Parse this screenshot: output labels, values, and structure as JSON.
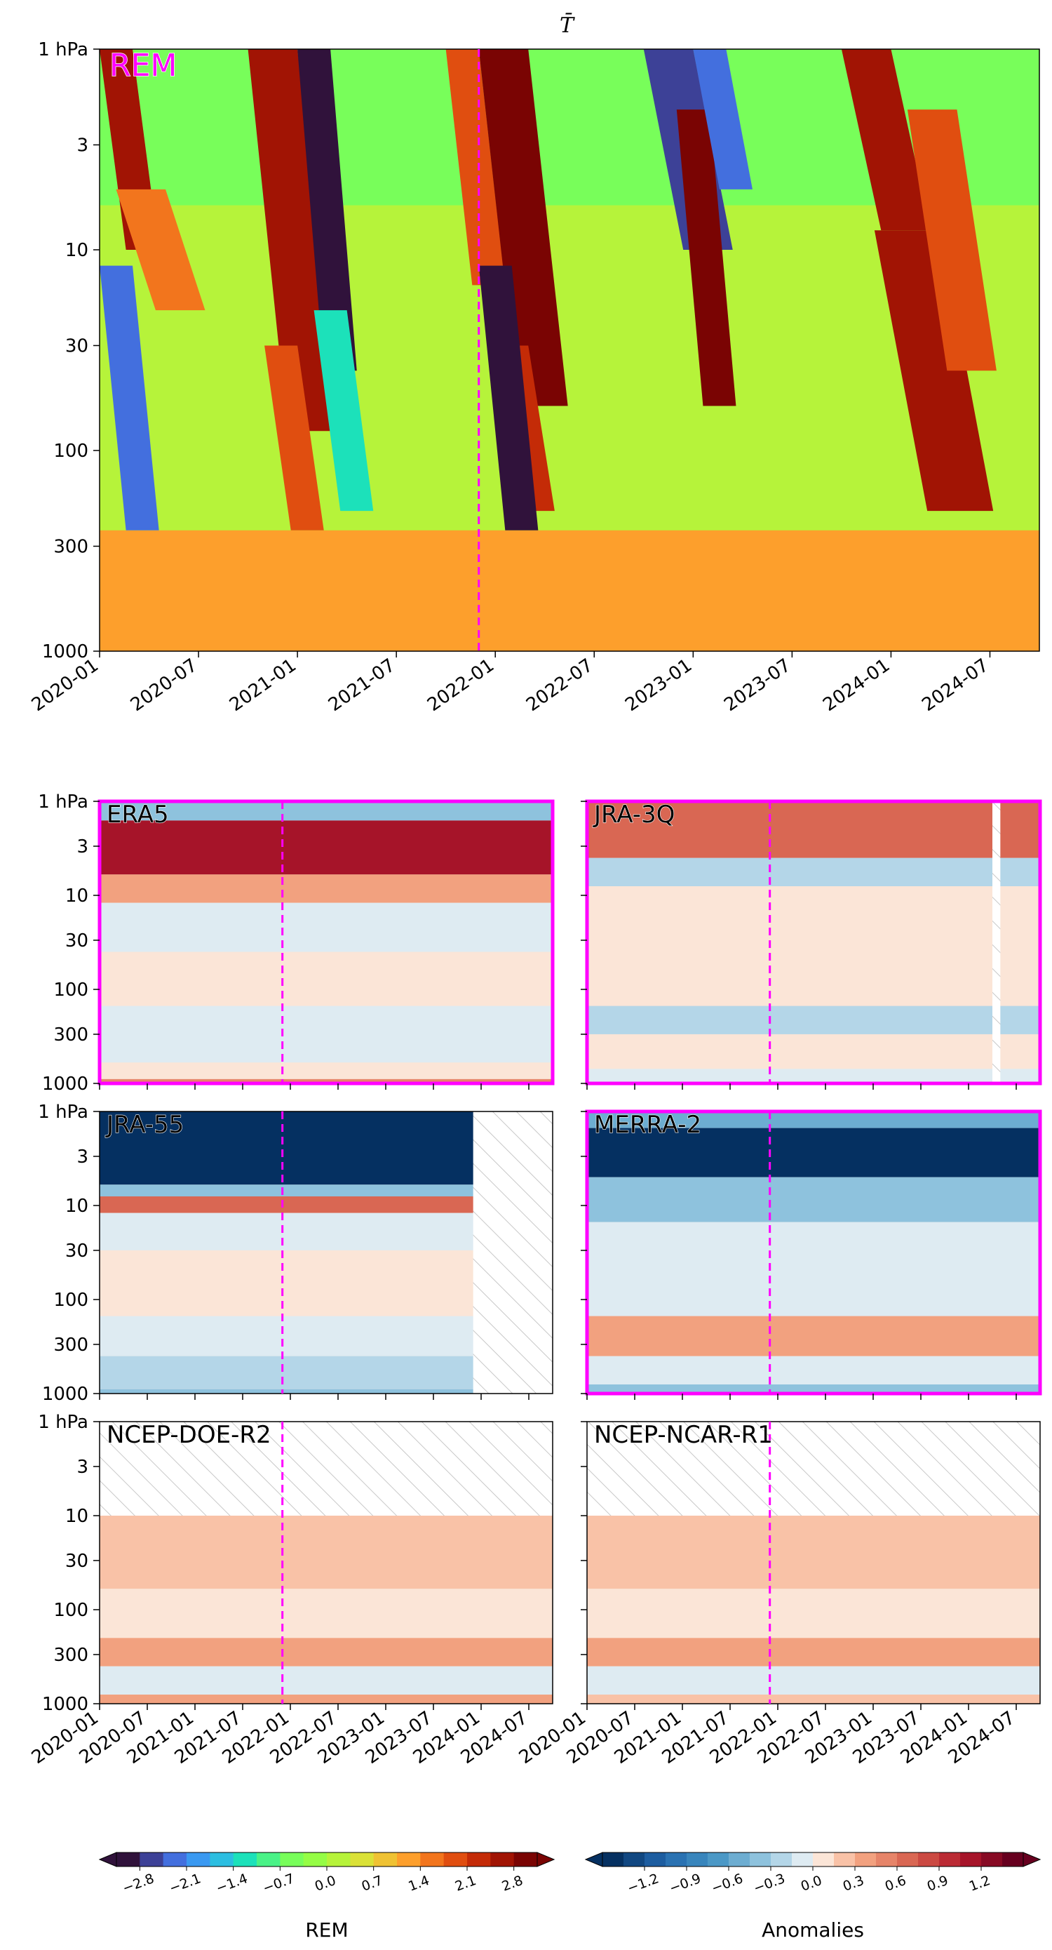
{
  "figure": {
    "title": "T̄",
    "marker_color": "#ff00ff",
    "missing_hatch_color": "#c8c8c8"
  },
  "chart_data": [
    {
      "type": "heatmap",
      "panel": "top",
      "label": "REM",
      "title": "T̄",
      "x_range": [
        "2020-01",
        "2024-10"
      ],
      "x_ticks": [
        "2020-01",
        "2020-07",
        "2021-01",
        "2021-07",
        "2022-01",
        "2022-07",
        "2023-01",
        "2023-07",
        "2024-01",
        "2024-07"
      ],
      "y_scale": "log",
      "y_range_hPa": [
        1000,
        1
      ],
      "y_ticks": [
        "1 hPa",
        "3",
        "10",
        "30",
        "100",
        "300",
        "1000"
      ],
      "event_date": "2021-12",
      "colormap": "turbo",
      "highlight_frame": false,
      "features": [
        {
          "start": "2020-01",
          "end": "2020-03",
          "top_hPa": 1,
          "bottom_hPa": 10,
          "value": 2.6
        },
        {
          "start": "2020-02",
          "end": "2020-05",
          "top_hPa": 5,
          "bottom_hPa": 20,
          "value": 1.6
        },
        {
          "start": "2020-01",
          "end": "2020-03",
          "top_hPa": 12,
          "bottom_hPa": 250,
          "value": -2.4
        },
        {
          "start": "2020-10",
          "end": "2021-01",
          "top_hPa": 1,
          "bottom_hPa": 80,
          "value": 2.5
        },
        {
          "start": "2020-11",
          "end": "2021-01",
          "top_hPa": 30,
          "bottom_hPa": 250,
          "value": 1.8
        },
        {
          "start": "2021-01",
          "end": "2021-03",
          "top_hPa": 1,
          "bottom_hPa": 40,
          "value": -3.0
        },
        {
          "start": "2021-02",
          "end": "2021-04",
          "top_hPa": 20,
          "bottom_hPa": 200,
          "value": -1.2
        },
        {
          "start": "2021-10",
          "end": "2021-12",
          "top_hPa": 1,
          "bottom_hPa": 15,
          "value": 1.9
        },
        {
          "start": "2021-12",
          "end": "2022-03",
          "top_hPa": 1,
          "bottom_hPa": 60,
          "value": 3.0
        },
        {
          "start": "2022-01",
          "end": "2022-03",
          "top_hPa": 30,
          "bottom_hPa": 200,
          "value": 2.2
        },
        {
          "start": "2021-12",
          "end": "2022-02",
          "top_hPa": 12,
          "bottom_hPa": 250,
          "value": -3.0
        },
        {
          "start": "2022-10",
          "end": "2023-01",
          "top_hPa": 1,
          "bottom_hPa": 10,
          "value": -2.6
        },
        {
          "start": "2022-12",
          "end": "2023-02",
          "top_hPa": 2,
          "bottom_hPa": 60,
          "value": 2.9
        },
        {
          "start": "2023-01",
          "end": "2023-03",
          "top_hPa": 1,
          "bottom_hPa": 5,
          "value": -2.2
        },
        {
          "start": "2023-10",
          "end": "2024-01",
          "top_hPa": 1,
          "bottom_hPa": 8,
          "value": 2.8
        },
        {
          "start": "2023-12",
          "end": "2024-04",
          "top_hPa": 8,
          "bottom_hPa": 200,
          "value": 2.5
        },
        {
          "start": "2024-02",
          "end": "2024-05",
          "top_hPa": 2,
          "bottom_hPa": 40,
          "value": 2.0
        }
      ]
    },
    {
      "type": "heatmap",
      "panel": "ERA5",
      "label": "ERA5",
      "colormap": "RdBu_r",
      "highlight_frame": true,
      "missing": [],
      "event_date": "2021-12",
      "layers": [
        {
          "top_hPa": 1,
          "bottom_hPa": 1.6,
          "value": -0.35
        },
        {
          "top_hPa": 1.6,
          "bottom_hPa": 6,
          "value": 1.1
        },
        {
          "top_hPa": 6,
          "bottom_hPa": 12,
          "value": 0.35
        },
        {
          "top_hPa": 12,
          "bottom_hPa": 40,
          "value": -0.05
        },
        {
          "top_hPa": 40,
          "bottom_hPa": 150,
          "value": 0.02
        },
        {
          "top_hPa": 150,
          "bottom_hPa": 600,
          "value": -0.06
        },
        {
          "top_hPa": 600,
          "bottom_hPa": 900,
          "value": 0.05
        },
        {
          "top_hPa": 900,
          "bottom_hPa": 1000,
          "value": 0.5
        }
      ]
    },
    {
      "type": "heatmap",
      "panel": "JRA-3Q",
      "label": "JRA-3Q",
      "colormap": "RdBu_r",
      "highlight_frame": true,
      "missing": [
        {
          "start": "2024-04",
          "end": "2024-05",
          "top_hPa": 1,
          "bottom_hPa": 1000
        }
      ],
      "event_date": "2021-12",
      "layers": [
        {
          "top_hPa": 1,
          "bottom_hPa": 4,
          "value": 0.7
        },
        {
          "top_hPa": 4,
          "bottom_hPa": 8,
          "value": -0.2
        },
        {
          "top_hPa": 8,
          "bottom_hPa": 30,
          "value": 0.12
        },
        {
          "top_hPa": 30,
          "bottom_hPa": 150,
          "value": 0.05
        },
        {
          "top_hPa": 150,
          "bottom_hPa": 300,
          "value": -0.2
        },
        {
          "top_hPa": 300,
          "bottom_hPa": 700,
          "value": 0.02
        },
        {
          "top_hPa": 700,
          "bottom_hPa": 1000,
          "value": -0.12
        }
      ]
    },
    {
      "type": "heatmap",
      "panel": "JRA-55",
      "label": "JRA-55",
      "colormap": "RdBu_r",
      "highlight_frame": false,
      "missing": [
        {
          "start": "2023-12",
          "end": "2024-10",
          "top_hPa": 1,
          "bottom_hPa": 1000
        }
      ],
      "event_date": "2021-12",
      "layers": [
        {
          "top_hPa": 1,
          "bottom_hPa": 6,
          "value": -1.4
        },
        {
          "top_hPa": 6,
          "bottom_hPa": 8,
          "value": -0.4
        },
        {
          "top_hPa": 8,
          "bottom_hPa": 12,
          "value": 0.6
        },
        {
          "top_hPa": 12,
          "bottom_hPa": 30,
          "value": -0.05
        },
        {
          "top_hPa": 30,
          "bottom_hPa": 150,
          "value": 0.1
        },
        {
          "top_hPa": 150,
          "bottom_hPa": 400,
          "value": -0.12
        },
        {
          "top_hPa": 400,
          "bottom_hPa": 900,
          "value": -0.18
        },
        {
          "top_hPa": 900,
          "bottom_hPa": 1000,
          "value": -0.3
        }
      ]
    },
    {
      "type": "heatmap",
      "panel": "MERRA-2",
      "label": "MERRA-2",
      "colormap": "RdBu_r",
      "highlight_frame": true,
      "missing": [],
      "event_date": "2021-12",
      "layers": [
        {
          "top_hPa": 1,
          "bottom_hPa": 1.5,
          "value": -0.6
        },
        {
          "top_hPa": 1.5,
          "bottom_hPa": 5,
          "value": -1.4
        },
        {
          "top_hPa": 5,
          "bottom_hPa": 15,
          "value": -0.45
        },
        {
          "top_hPa": 15,
          "bottom_hPa": 150,
          "value": -0.06
        },
        {
          "top_hPa": 150,
          "bottom_hPa": 400,
          "value": 0.35
        },
        {
          "top_hPa": 400,
          "bottom_hPa": 800,
          "value": -0.1
        },
        {
          "top_hPa": 800,
          "bottom_hPa": 1000,
          "value": -0.4
        }
      ]
    },
    {
      "type": "heatmap",
      "panel": "NCEP-DOE-R2",
      "label": "NCEP-DOE-R2",
      "colormap": "RdBu_r",
      "highlight_frame": false,
      "missing": [
        {
          "start": "2020-01",
          "end": "2024-10",
          "top_hPa": 1,
          "bottom_hPa": 10
        }
      ],
      "event_date": "2021-12",
      "layers": [
        {
          "top_hPa": 10,
          "bottom_hPa": 60,
          "value": 0.25
        },
        {
          "top_hPa": 60,
          "bottom_hPa": 200,
          "value": 0.05
        },
        {
          "top_hPa": 200,
          "bottom_hPa": 400,
          "value": 0.35
        },
        {
          "top_hPa": 400,
          "bottom_hPa": 800,
          "value": -0.1
        },
        {
          "top_hPa": 800,
          "bottom_hPa": 1000,
          "value": 0.3
        }
      ]
    },
    {
      "type": "heatmap",
      "panel": "NCEP-NCAR-R1",
      "label": "NCEP-NCAR-R1",
      "colormap": "RdBu_r",
      "highlight_frame": false,
      "missing": [
        {
          "start": "2020-01",
          "end": "2024-10",
          "top_hPa": 1,
          "bottom_hPa": 10
        }
      ],
      "event_date": "2021-12",
      "layers": [
        {
          "top_hPa": 10,
          "bottom_hPa": 60,
          "value": 0.22
        },
        {
          "top_hPa": 60,
          "bottom_hPa": 200,
          "value": 0.04
        },
        {
          "top_hPa": 200,
          "bottom_hPa": 400,
          "value": 0.35
        },
        {
          "top_hPa": 400,
          "bottom_hPa": 800,
          "value": -0.08
        },
        {
          "top_hPa": 800,
          "bottom_hPa": 1000,
          "value": 0.25
        }
      ]
    }
  ],
  "small_panels": {
    "y_ticks": [
      "1 hPa",
      "3",
      "10",
      "30",
      "100",
      "300",
      "1000"
    ],
    "x_ticks": [
      "2020-01",
      "2020-07",
      "2021-01",
      "2021-07",
      "2022-01",
      "2022-07",
      "2023-01",
      "2023-07",
      "2024-01",
      "2024-07"
    ]
  },
  "colorbars": {
    "rem": {
      "label": "REM",
      "colormap": "turbo",
      "range": [
        -3.15,
        3.15
      ],
      "ticks": [
        "−2.8",
        "−2.1",
        "−1.4",
        "−0.7",
        "0.0",
        "0.7",
        "1.4",
        "2.1",
        "2.8"
      ],
      "tick_values": [
        -2.8,
        -2.1,
        -1.4,
        -0.7,
        0.0,
        0.7,
        1.4,
        2.1,
        2.8
      ],
      "levels": 18
    },
    "anomalies": {
      "label": "Anomalies",
      "colormap": "RdBu_r",
      "range": [
        -1.5,
        1.5
      ],
      "ticks": [
        "−1.2",
        "−0.9",
        "−0.6",
        "−0.3",
        "0.0",
        "0.3",
        "0.6",
        "0.9",
        "1.2"
      ],
      "tick_values": [
        -1.2,
        -0.9,
        -0.6,
        -0.3,
        0.0,
        0.3,
        0.6,
        0.9,
        1.2
      ],
      "levels": 20
    }
  }
}
